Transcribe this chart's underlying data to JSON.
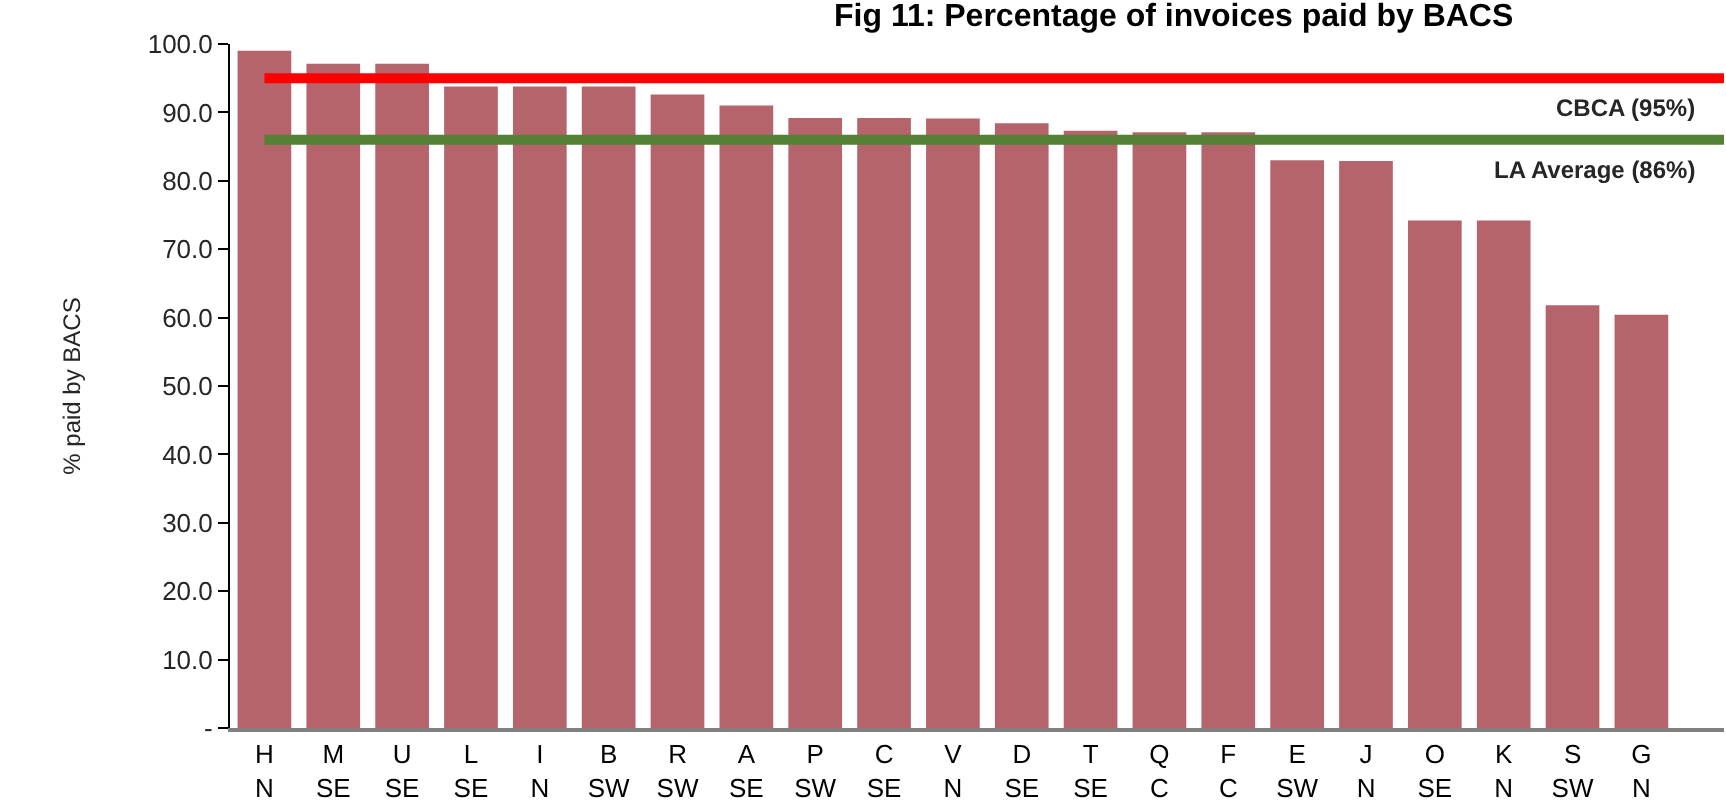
{
  "chart_data": {
    "type": "bar",
    "title": "Fig 11: Percentage of invoices paid by BACS",
    "ylabel": "% paid by BACS",
    "categories": [
      "H\nN",
      "M\nSE",
      "U\nSE",
      "L\nSE",
      "I\nN",
      "B\nSW",
      "R\nSW",
      "A\nSE",
      "P\nSW",
      "C\nSE",
      "V\nN",
      "D\nSE",
      "T\nSE",
      "Q\nC",
      "F\nC",
      "E\nSW",
      "J\nN",
      "O\nSE",
      "K\nN",
      "S\nSW",
      "G\nN"
    ],
    "values": [
      99.0,
      97.1,
      97.1,
      93.8,
      93.8,
      93.8,
      92.6,
      91.0,
      89.2,
      89.2,
      89.1,
      88.4,
      87.3,
      87.1,
      87.1,
      83.0,
      82.9,
      74.2,
      74.2,
      61.8,
      60.4
    ],
    "color": "#b5646c",
    "ylim": [
      0,
      100
    ],
    "yticks": [
      {
        "value": 0,
        "label": "-"
      },
      {
        "value": 10,
        "label": "10.0"
      },
      {
        "value": 20,
        "label": "20.0"
      },
      {
        "value": 30,
        "label": "30.0"
      },
      {
        "value": 40,
        "label": "40.0"
      },
      {
        "value": 50,
        "label": "50.0"
      },
      {
        "value": 60,
        "label": "60.0"
      },
      {
        "value": 70,
        "label": "70.0"
      },
      {
        "value": 80,
        "label": "80.0"
      },
      {
        "value": 90,
        "label": "90.0"
      },
      {
        "value": 100,
        "label": "100.0"
      }
    ],
    "ref_lines": [
      {
        "axis": "y",
        "value": 95,
        "label": "CBCA (95%)",
        "color": "#ff0000"
      },
      {
        "axis": "y",
        "value": 86,
        "label": "LA Average (86%)",
        "color": "#538135"
      }
    ],
    "grid": false
  }
}
